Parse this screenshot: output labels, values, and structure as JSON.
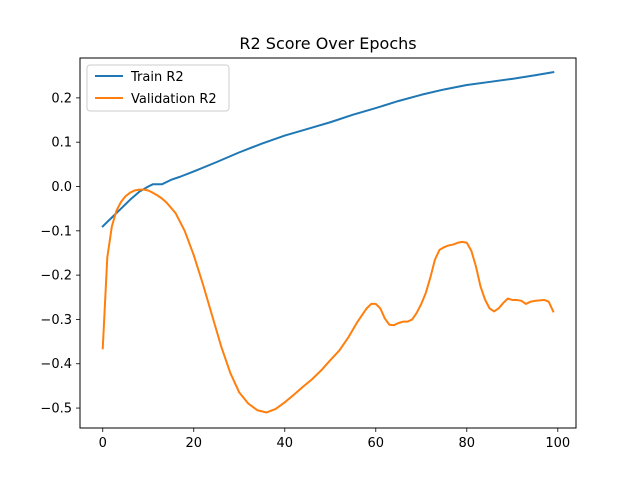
{
  "chart_data": {
    "type": "line",
    "title": "R2 Score Over Epochs",
    "xlabel": "",
    "ylabel": "",
    "xlim": [
      -5,
      104
    ],
    "ylim": [
      -0.545,
      0.29
    ],
    "x_ticks": [
      0,
      20,
      40,
      60,
      80,
      100
    ],
    "y_ticks": [
      -0.5,
      -0.4,
      -0.3,
      -0.2,
      -0.1,
      0.0,
      0.1,
      0.2
    ],
    "x_tick_labels": [
      "0",
      "20",
      "40",
      "60",
      "80",
      "100"
    ],
    "y_tick_labels": [
      "−0.5",
      "−0.4",
      "−0.3",
      "−0.2",
      "−0.1",
      "0.0",
      "0.1",
      "0.2"
    ],
    "grid": false,
    "legend_position": "top-left",
    "series": [
      {
        "name": "Train R2",
        "color": "#1f77b4",
        "x": [
          0,
          2,
          4,
          6,
          8,
          10,
          11,
          12,
          13,
          15,
          17,
          20,
          25,
          30,
          35,
          40,
          45,
          50,
          55,
          60,
          65,
          70,
          75,
          80,
          85,
          90,
          95,
          99
        ],
        "y": [
          -0.09,
          -0.07,
          -0.05,
          -0.03,
          -0.012,
          0.0,
          0.005,
          0.005,
          0.005,
          0.015,
          0.022,
          0.034,
          0.055,
          0.077,
          0.097,
          0.115,
          0.13,
          0.145,
          0.162,
          0.177,
          0.193,
          0.207,
          0.219,
          0.229,
          0.236,
          0.243,
          0.251,
          0.258
        ]
      },
      {
        "name": "Validation R2",
        "color": "#ff7f0e",
        "x": [
          0,
          1,
          2,
          3,
          4,
          5,
          6,
          7,
          8,
          9,
          10,
          11,
          12,
          13,
          14,
          16,
          18,
          20,
          22,
          24,
          26,
          28,
          30,
          32,
          34,
          36,
          38,
          40,
          42,
          44,
          46,
          48,
          50,
          52,
          54,
          56,
          58,
          59,
          60,
          61,
          62,
          63,
          64,
          65,
          66,
          67,
          68,
          69,
          70,
          71,
          72,
          73,
          74,
          75,
          76,
          77,
          78,
          79,
          80,
          81,
          82,
          83,
          84,
          85,
          86,
          87,
          88,
          89,
          90,
          91,
          92,
          93,
          94,
          95,
          96,
          97,
          98,
          99
        ],
        "y": [
          -0.365,
          -0.16,
          -0.09,
          -0.055,
          -0.035,
          -0.022,
          -0.014,
          -0.009,
          -0.007,
          -0.007,
          -0.009,
          -0.014,
          -0.02,
          -0.027,
          -0.036,
          -0.06,
          -0.1,
          -0.155,
          -0.22,
          -0.29,
          -0.36,
          -0.42,
          -0.465,
          -0.49,
          -0.505,
          -0.51,
          -0.502,
          -0.487,
          -0.47,
          -0.452,
          -0.435,
          -0.415,
          -0.392,
          -0.37,
          -0.34,
          -0.305,
          -0.275,
          -0.265,
          -0.265,
          -0.275,
          -0.298,
          -0.312,
          -0.313,
          -0.308,
          -0.305,
          -0.305,
          -0.3,
          -0.285,
          -0.265,
          -0.24,
          -0.205,
          -0.165,
          -0.143,
          -0.137,
          -0.133,
          -0.131,
          -0.127,
          -0.125,
          -0.127,
          -0.145,
          -0.18,
          -0.225,
          -0.255,
          -0.275,
          -0.282,
          -0.275,
          -0.263,
          -0.253,
          -0.256,
          -0.256,
          -0.258,
          -0.265,
          -0.26,
          -0.258,
          -0.257,
          -0.256,
          -0.26,
          -0.282
        ]
      }
    ]
  }
}
